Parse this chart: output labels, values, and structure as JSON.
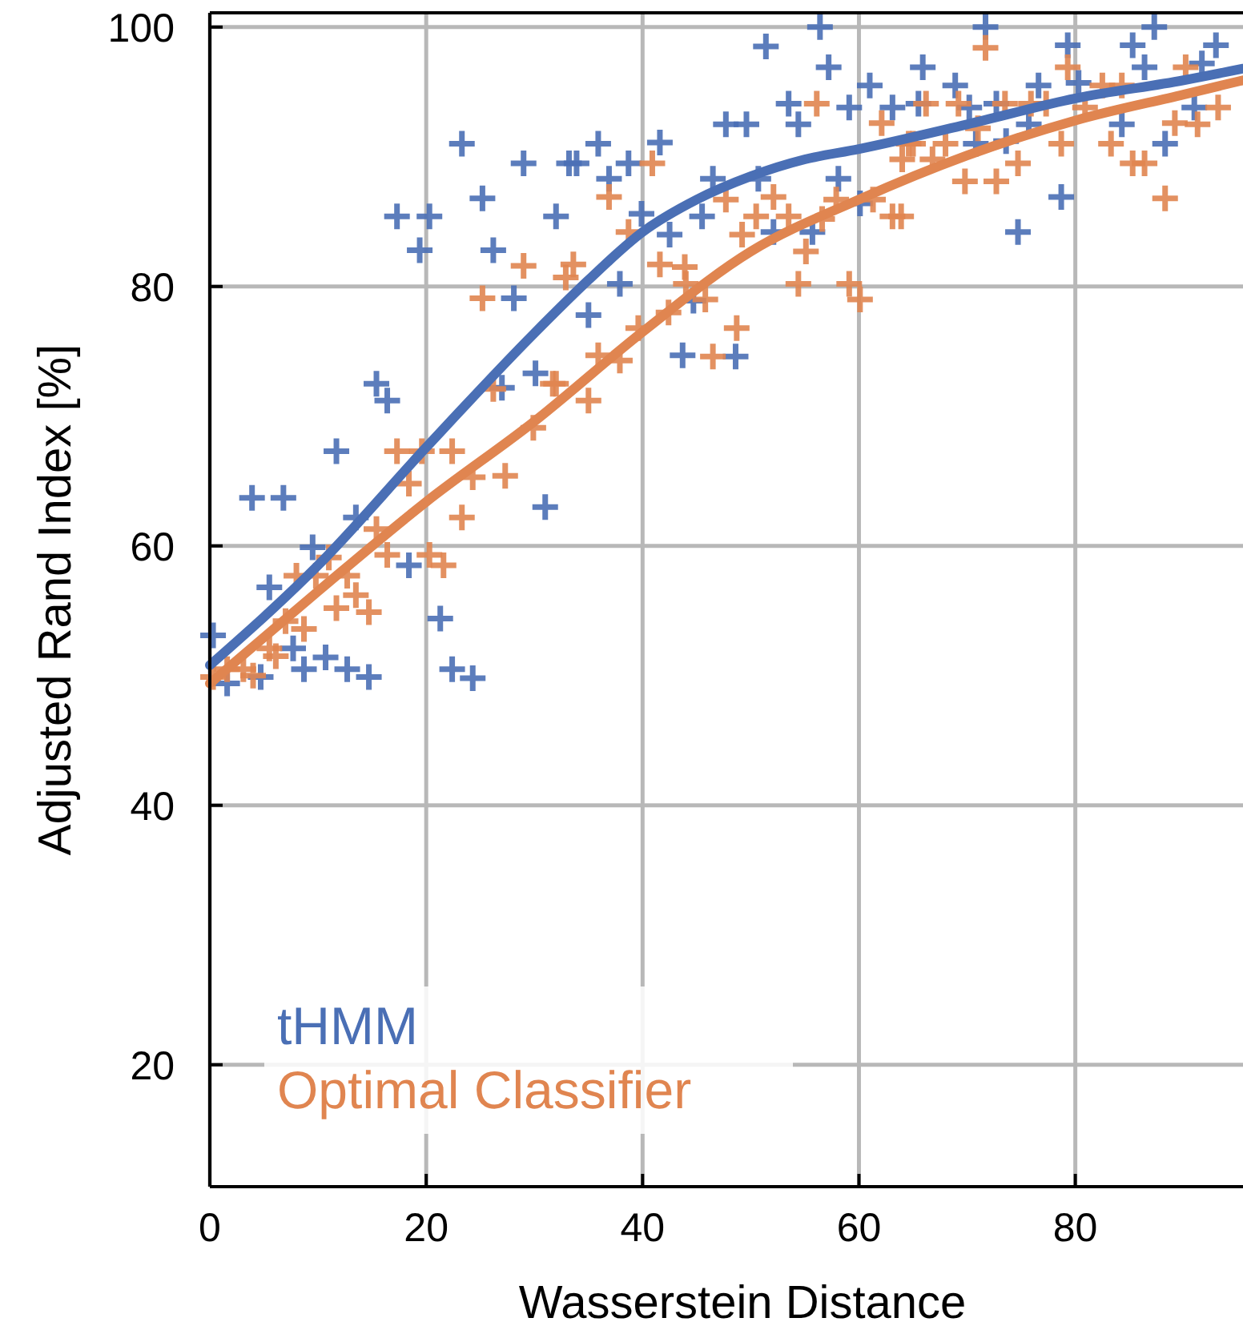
{
  "chart_data": {
    "type": "scatter",
    "xlabel": "Wasserstein Distance",
    "ylabel": "Adjusted Rand Index [%]",
    "xlim": [
      0,
      95.5
    ],
    "ylim": [
      10.6,
      101.1
    ],
    "xticks": [
      0,
      20,
      40,
      60,
      80
    ],
    "yticks": [
      20,
      40,
      60,
      80,
      100
    ],
    "grid": true,
    "legend": "bottom left",
    "series": [
      {
        "marker": "cross",
        "color": "#4a6fb5",
        "x": [
          17.3,
          20.3,
          19.4,
          25.2,
          26.2,
          29.0,
          32.0,
          28.1,
          15.4,
          16.4,
          27.0,
          30.1,
          11.7,
          3.9,
          6.8,
          13.5,
          31.0,
          9.5,
          18.4,
          5.5,
          21.3,
          7.7,
          10.7,
          8.7,
          12.7,
          14.7,
          22.4,
          24.3,
          0.3,
          1.6,
          4.7,
          33.2,
          23.3,
          56.4,
          51.4,
          57.2,
          61.0,
          53.5,
          59.1,
          63.1,
          47.7,
          49.6,
          54.4,
          35.9,
          41.6,
          33.9,
          38.7,
          36.9,
          46.5,
          50.7,
          58.1,
          39.9,
          42.5,
          45.5,
          52.1,
          55.7,
          60.1,
          37.9,
          35.0,
          43.7,
          48.6,
          44.7,
          71.7,
          87.3,
          79.3,
          85.3,
          93.0,
          65.9,
          86.4,
          68.9,
          76.6,
          80.3,
          91.7,
          65.5,
          72.7,
          70.2,
          75.7,
          84.3,
          91.0,
          70.8,
          73.6,
          88.3,
          78.7,
          74.7
        ],
        "values": [
          85.4,
          85.4,
          82.8,
          86.8,
          82.8,
          89.5,
          85.4,
          79.1,
          72.5,
          71.2,
          72.2,
          73.3,
          67.3,
          63.7,
          63.7,
          62.2,
          63.0,
          59.9,
          58.5,
          56.8,
          54.4,
          52.1,
          51.4,
          50.5,
          50.5,
          49.9,
          50.5,
          49.8,
          53.1,
          49.4,
          49.9,
          89.5,
          91.0,
          100.0,
          98.5,
          96.9,
          95.5,
          94.1,
          93.8,
          93.8,
          92.5,
          92.5,
          92.5,
          91.0,
          91.1,
          89.5,
          89.5,
          88.3,
          88.3,
          88.3,
          88.3,
          85.6,
          84.0,
          85.4,
          84.2,
          84.2,
          86.4,
          80.2,
          77.8,
          74.7,
          74.6,
          78.9,
          100.0,
          100.0,
          98.6,
          98.6,
          98.6,
          96.9,
          96.9,
          95.5,
          95.5,
          95.7,
          97.2,
          94.1,
          94.1,
          93.8,
          92.5,
          92.5,
          93.8,
          91.0,
          91.2,
          91.0,
          86.9,
          84.2
        ]
      },
      {
        "marker": "cross",
        "color": "#e08550",
        "x": [
          29.0,
          25.2,
          32.9,
          26.2,
          31.7,
          29.9,
          17.3,
          19.6,
          22.4,
          18.4,
          24.3,
          27.3,
          23.3,
          15.4,
          16.4,
          20.3,
          21.6,
          11.0,
          8.0,
          9.8,
          12.7,
          11.7,
          13.5,
          14.7,
          7.0,
          8.7,
          5.5,
          6.1,
          1.6,
          3.1,
          4.0,
          0.3,
          56.1,
          62.1,
          64.6,
          64.0,
          40.9,
          36.9,
          47.7,
          52.1,
          50.5,
          53.5,
          57.9,
          61.3,
          63.1,
          38.7,
          49.2,
          56.6,
          55.1,
          33.6,
          41.6,
          43.9,
          44.0,
          45.8,
          54.4,
          59.1,
          60.1,
          42.4,
          39.6,
          48.7,
          35.9,
          37.9,
          46.5,
          32.0,
          35.0,
          71.7,
          79.3,
          90.2,
          82.5,
          84.3,
          66.2,
          69.2,
          73.5,
          75.9,
          77.3,
          80.9,
          93.2,
          89.2,
          91.3,
          71.0,
          65.0,
          68.0,
          78.7,
          83.3,
          66.8,
          74.7,
          85.3,
          86.4,
          69.8,
          72.7,
          88.3,
          63.9
        ],
        "values": [
          81.6,
          79.1,
          80.7,
          72.1,
          72.5,
          69.1,
          67.3,
          67.3,
          67.3,
          64.8,
          65.3,
          65.4,
          62.2,
          61.3,
          59.3,
          59.3,
          58.5,
          59.1,
          57.7,
          57.7,
          57.7,
          55.2,
          56.2,
          54.9,
          54.2,
          53.6,
          52.1,
          51.5,
          50.5,
          50.5,
          50.0,
          49.9,
          94.1,
          92.6,
          91.0,
          89.8,
          89.5,
          86.9,
          86.7,
          86.9,
          85.4,
          85.4,
          86.7,
          86.7,
          85.4,
          84.2,
          84.0,
          85.2,
          82.7,
          81.7,
          81.7,
          81.5,
          80.2,
          79.0,
          80.2,
          80.2,
          79.0,
          78.0,
          76.8,
          76.8,
          74.7,
          74.3,
          74.6,
          72.5,
          71.2,
          98.4,
          96.9,
          96.9,
          95.5,
          95.5,
          94.1,
          94.1,
          94.1,
          94.1,
          94.1,
          93.8,
          93.8,
          92.6,
          92.5,
          92.2,
          91.0,
          91.0,
          91.0,
          91.0,
          89.8,
          89.5,
          89.5,
          89.5,
          88.1,
          88.1,
          86.8,
          85.4
        ]
      },
      {
        "type": "line",
        "name": "tHMM",
        "color": "#4a6fb5",
        "marker": "none",
        "x": [
          0,
          10,
          20,
          30,
          35,
          40,
          45,
          50,
          55,
          60,
          70,
          80,
          90,
          95.5
        ],
        "values": [
          50.8,
          58.5,
          67.6,
          76.4,
          80.5,
          84.2,
          86.7,
          88.5,
          89.8,
          90.6,
          92.5,
          94.5,
          95.9,
          96.8
        ]
      },
      {
        "type": "line",
        "name": "Optimal Classifier",
        "color": "#e08550",
        "marker": "none",
        "x": [
          0,
          10,
          20,
          30,
          40,
          50,
          60,
          70,
          80,
          90,
          95.5
        ],
        "values": [
          49.4,
          56.5,
          63.4,
          69.6,
          76.5,
          82.7,
          86.7,
          90.1,
          92.8,
          94.8,
          95.9
        ]
      }
    ]
  }
}
